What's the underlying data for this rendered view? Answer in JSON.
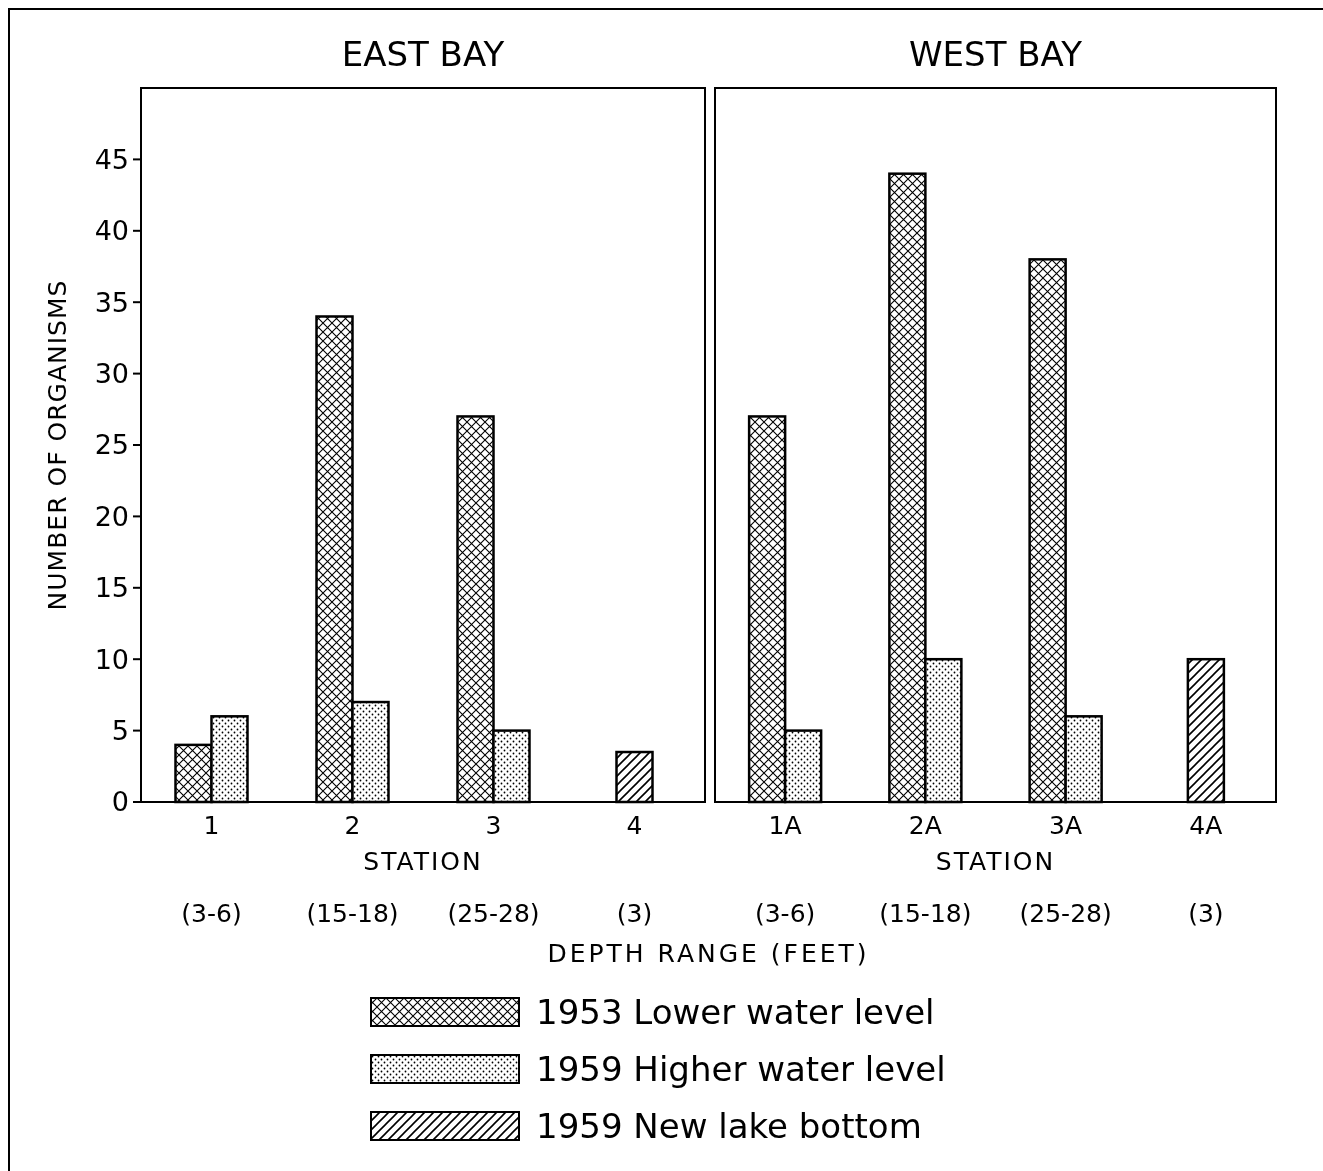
{
  "chart_data": [
    {
      "type": "bar",
      "title": "EAST BAY",
      "categories": [
        "1",
        "2",
        "3",
        "4"
      ],
      "series": [
        {
          "name": "1953 Lower water level",
          "color": "#000000",
          "values": [
            4,
            34,
            27,
            null
          ]
        },
        {
          "name": "1959 Higher water level",
          "color": "#000000",
          "values": [
            6,
            7,
            5,
            null
          ]
        },
        {
          "name": "1959 New lake bottom",
          "color": "#000000",
          "values": [
            null,
            null,
            null,
            3.5
          ]
        }
      ],
      "xlabel": "STATION",
      "ylabel": "NUMBER OF ORGANISMS",
      "ylim": [
        0,
        50
      ],
      "yticks": [
        0,
        5,
        10,
        15,
        20,
        25,
        30,
        35,
        40,
        45
      ],
      "annotations": [
        "(3-6)",
        "(15-18)",
        "(25-28)",
        "(3)",
        "DEPTH RANGE (FEET)"
      ],
      "legend": "bottom",
      "grid": false
    },
    {
      "type": "bar",
      "title": "WEST BAY",
      "categories": [
        "1A",
        "2A",
        "3A",
        "4A"
      ],
      "series": [
        {
          "name": "1953 Lower water level",
          "color": "#000000",
          "values": [
            27,
            44,
            38,
            null
          ]
        },
        {
          "name": "1959 Higher water level",
          "color": "#000000",
          "values": [
            5,
            10,
            6,
            null
          ]
        },
        {
          "name": "1959 New lake bottom",
          "color": "#000000",
          "values": [
            null,
            null,
            null,
            10
          ]
        }
      ],
      "xlabel": "STATION",
      "ylim": [
        0,
        50
      ],
      "tick_labels": "x",
      "annotations": [
        "(3-6)",
        "(15-18)",
        "(25-28)",
        "(3)"
      ],
      "grid": false
    }
  ]
}
